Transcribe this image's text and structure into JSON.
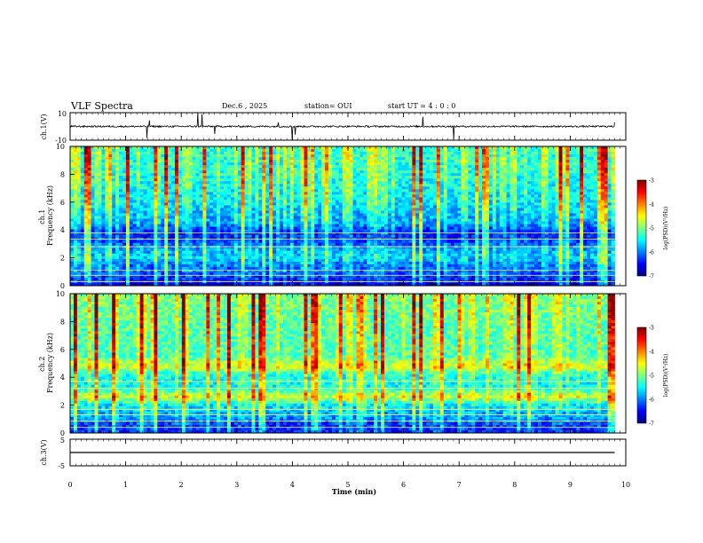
{
  "header": {
    "title": "VLF Spectra",
    "date": "Dec.6 , 2025",
    "station": "station= OUI",
    "start_time": "start  UT =   4 : 0  : 0"
  },
  "chart_data": [
    {
      "type": "line",
      "panel": "ch1-waveform",
      "ylabel": "ch.1(V)",
      "ylim": [
        -10,
        10
      ],
      "y_tick_labels": [
        "10",
        "-10"
      ],
      "baseline": 0,
      "noise_amplitude": 0.6,
      "spikes": [
        {
          "t": 1.38,
          "v": -8.5
        },
        {
          "t": 1.43,
          "v": 4.5
        },
        {
          "t": 2.3,
          "v": 10
        },
        {
          "t": 2.37,
          "v": 9
        },
        {
          "t": 2.6,
          "v": -5.5
        },
        {
          "t": 3.75,
          "v": 3
        },
        {
          "t": 4.0,
          "v": -10
        },
        {
          "t": 4.05,
          "v": -6
        },
        {
          "t": 6.35,
          "v": 7
        },
        {
          "t": 6.9,
          "v": -9.5
        },
        {
          "t": 9.8,
          "v": 3
        }
      ],
      "color": "#000000"
    },
    {
      "type": "heatmap",
      "panel": "ch1-spectrogram",
      "ylabel": "ch.1\nFrequency (kHz)",
      "xlim": [
        0,
        10
      ],
      "ylim": [
        0,
        10
      ],
      "y_ticks": [
        0,
        2,
        4,
        6,
        8,
        10
      ],
      "data_end_min": 9.8,
      "colorbar": {
        "label": "log(PSD)(V²/Hz)",
        "range": [
          -7,
          -3
        ],
        "ticks": [
          -7,
          -6,
          -5,
          -4,
          -3
        ]
      },
      "background_profile": [
        {
          "f": 0.0,
          "v": -6.8
        },
        {
          "f": 0.5,
          "v": -6.4
        },
        {
          "f": 1.0,
          "v": -6.2
        },
        {
          "f": 1.6,
          "v": -6.0
        },
        {
          "f": 2.0,
          "v": -5.7
        },
        {
          "f": 2.6,
          "v": -5.9
        },
        {
          "f": 3.2,
          "v": -6.3
        },
        {
          "f": 3.8,
          "v": -6.4
        },
        {
          "f": 4.5,
          "v": -5.9
        },
        {
          "f": 5.0,
          "v": -5.8
        },
        {
          "f": 6.0,
          "v": -5.6
        },
        {
          "f": 8.0,
          "v": -5.4
        },
        {
          "f": 10.0,
          "v": -5.3
        }
      ],
      "band_lines_khz": [
        0.3,
        0.75,
        1.1,
        2.8,
        3.35,
        3.8
      ]
    },
    {
      "type": "heatmap",
      "panel": "ch2-spectrogram",
      "ylabel": "ch.2\nFrequency (kHz)",
      "xlim": [
        0,
        10
      ],
      "ylim": [
        0,
        10
      ],
      "y_ticks": [
        0,
        2,
        4,
        6,
        8,
        10
      ],
      "data_end_min": 9.8,
      "colorbar": {
        "label": "log(PSD)(V²/Hz)",
        "range": [
          -7,
          -3
        ],
        "ticks": [
          -7,
          -6,
          -5,
          -4,
          -3
        ]
      },
      "background_profile": [
        {
          "f": 0.0,
          "v": -6.4
        },
        {
          "f": 0.6,
          "v": -6.3
        },
        {
          "f": 1.2,
          "v": -5.9
        },
        {
          "f": 2.0,
          "v": -5.6
        },
        {
          "f": 2.6,
          "v": -4.7
        },
        {
          "f": 3.3,
          "v": -5.5
        },
        {
          "f": 4.2,
          "v": -5.4
        },
        {
          "f": 4.8,
          "v": -4.6
        },
        {
          "f": 5.5,
          "v": -5.2
        },
        {
          "f": 7.0,
          "v": -5.2
        },
        {
          "f": 10.0,
          "v": -5.0
        }
      ],
      "band_lines_khz": [
        0.4,
        0.85,
        1.3,
        1.7,
        3.2,
        3.7
      ]
    },
    {
      "type": "line",
      "panel": "ch3-waveform",
      "ylabel": "ch.3(V)",
      "ylim": [
        -5,
        5
      ],
      "y_tick_labels": [
        "5",
        "-5"
      ],
      "baseline": 0,
      "noise_amplitude": 0,
      "color": "#000000"
    }
  ],
  "x_axis": {
    "label": "Time  (min)",
    "ticks": [
      0,
      1,
      2,
      3,
      4,
      5,
      6,
      7,
      8,
      9,
      10
    ],
    "xlim": [
      0,
      10
    ]
  },
  "colors": {
    "colormap": [
      "#00007f",
      "#0000ff",
      "#007fff",
      "#00ffff",
      "#7fff7f",
      "#ffff00",
      "#ff7f00",
      "#ff0000",
      "#7f0000"
    ]
  }
}
